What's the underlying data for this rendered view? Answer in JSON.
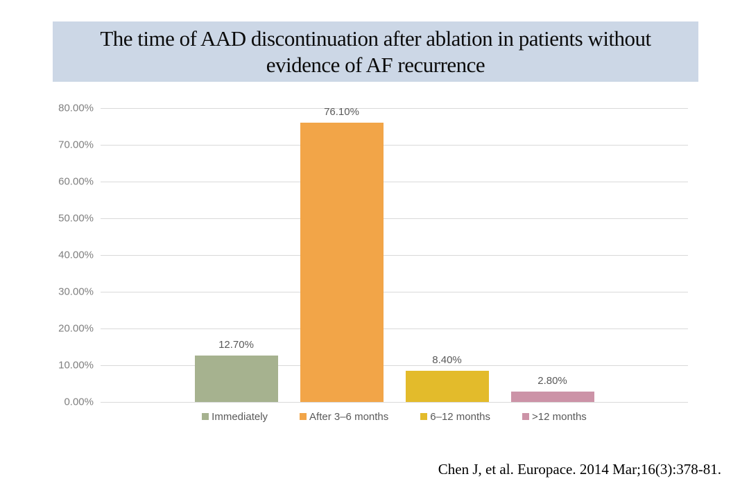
{
  "title": {
    "text": "The time of AAD discontinuation after ablation in patients without evidence of AF recurrence",
    "bg_color": "#CCD7E6"
  },
  "chart_data": {
    "type": "bar",
    "title": "The time of AAD discontinuation after ablation in patients without evidence of AF recurrence",
    "categories": [
      "Immediately",
      "After 3–6 months",
      "6–12 months",
      ">12 months"
    ],
    "values": [
      12.7,
      76.1,
      8.4,
      2.8
    ],
    "data_labels": [
      "12.70%",
      "76.10%",
      "8.40%",
      "2.80%"
    ],
    "bar_colors": [
      "#A6B28F",
      "#F2A548",
      "#E3BB2B",
      "#CC93A7"
    ],
    "xlabel": "",
    "ylabel": "",
    "ylim": [
      0,
      80
    ],
    "ytick_step": 10,
    "ytick_labels": [
      "0.00%",
      "10.00%",
      "20.00%",
      "30.00%",
      "40.00%",
      "50.00%",
      "60.00%",
      "70.00%",
      "80.00%"
    ],
    "grid": true,
    "legend_position": "bottom"
  },
  "citation": "Chen J, et al. Europace. 2014 Mar;16(3):378-81.",
  "colors": {
    "gridline": "#D9D9D9",
    "axis_text": "#7F7F7F",
    "label_text": "#595959",
    "title_bg": "#CCD7E6"
  }
}
